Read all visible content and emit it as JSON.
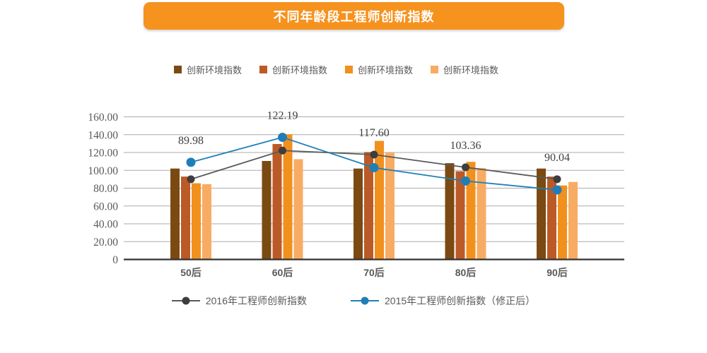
{
  "title": {
    "text": "不同年龄段工程师创新指数"
  },
  "colors": {
    "title_bg": "#F6921E",
    "grid": "#ABABAB",
    "axis_line": "#333333",
    "text": "#595959"
  },
  "chart_data": {
    "type": "bar+line combo",
    "title": "不同年龄段工程师创新指数",
    "categories": [
      "50后",
      "60后",
      "70后",
      "80后",
      "90后"
    ],
    "xlabel": "",
    "ylabel": "",
    "y_axis": {
      "min": 0,
      "max": 160,
      "step": 20,
      "tick_values": [
        160,
        140,
        120,
        100,
        80,
        60,
        40,
        20,
        0
      ],
      "tick_labels": [
        "160.00",
        "140.00",
        "120.00",
        "100.00",
        "80.00",
        "60.00",
        "40.00",
        "20.00",
        "0"
      ]
    },
    "grid": true,
    "bar_series": [
      {
        "name": "创新环境指数",
        "color": "#7B4A12",
        "values": [
          102,
          110.5,
          102,
          108,
          102
        ]
      },
      {
        "name": "创新环境指数",
        "color": "#BC5A27",
        "values": [
          93,
          129.5,
          120.5,
          99,
          93
        ]
      },
      {
        "name": "创新环境指数",
        "color": "#F2901E",
        "values": [
          85.5,
          140.5,
          133,
          109.5,
          83
        ]
      },
      {
        "name": "创新环境指数",
        "color": "#F8AC63",
        "values": [
          84.5,
          112.5,
          120,
          102.5,
          87
        ]
      }
    ],
    "line_series": [
      {
        "name": "2016年工程师创新指数",
        "color": "#595959",
        "marker_color": "#3D3D3D",
        "values": [
          89.98,
          122.19,
          117.6,
          103.36,
          90.04
        ],
        "data_labels": [
          "89.98",
          "122.19",
          "117.60",
          "103.36",
          "90.04"
        ]
      },
      {
        "name": "2015年工程师创新指数（修正后）",
        "color": "#1F7EB8",
        "marker_color": "#1F7EB8",
        "values": [
          109,
          137,
          103,
          88,
          78
        ]
      }
    ],
    "legend_positions": {
      "bar_series": "top",
      "line_series": "bottom"
    }
  }
}
